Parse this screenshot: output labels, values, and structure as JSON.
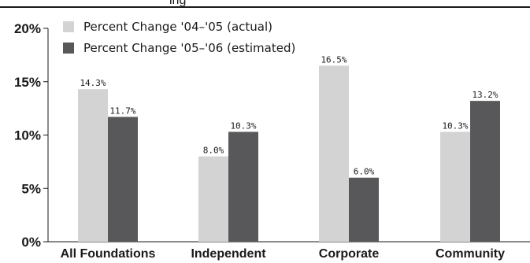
{
  "chart_data": {
    "type": "bar",
    "title": "",
    "xlabel": "",
    "ylabel": "",
    "categories": [
      "All Foundations",
      "Independent",
      "Corporate",
      "Community"
    ],
    "series": [
      {
        "name": "Percent Change '04–'05 (actual)",
        "color": "#d3d3d3",
        "values": [
          14.3,
          8.0,
          16.5,
          10.3
        ]
      },
      {
        "name": "Percent Change '05–'06 (estimated)",
        "color": "#58585a",
        "values": [
          11.7,
          10.3,
          6.0,
          13.2
        ]
      }
    ],
    "data_labels": [
      [
        "14.3%",
        "8.0%",
        "16.5%",
        "10.3%"
      ],
      [
        "11.7%",
        "10.3%",
        "6.0%",
        "13.2%"
      ]
    ],
    "y_ticks": [
      {
        "value": 0,
        "label": "0%"
      },
      {
        "value": 5,
        "label": "5%"
      },
      {
        "value": 10,
        "label": "10%"
      },
      {
        "value": 15,
        "label": "15%"
      },
      {
        "value": 20,
        "label": "20%"
      }
    ],
    "ylim": [
      0,
      20
    ],
    "grid": false,
    "legend_position": "top-left",
    "title_fragment": "ing"
  }
}
